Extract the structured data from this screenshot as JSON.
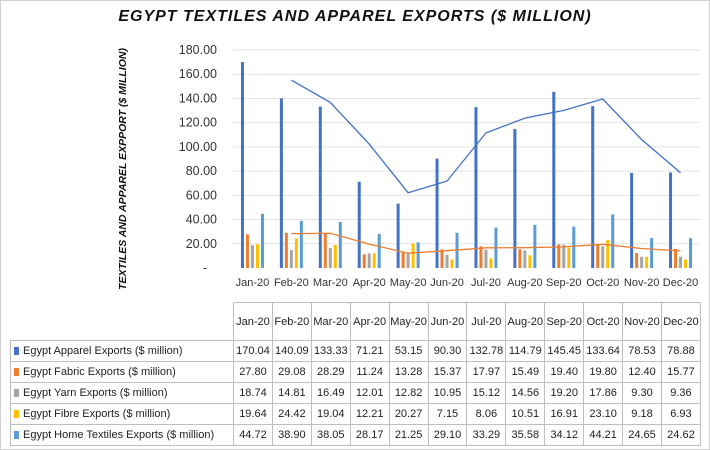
{
  "title": "EGYPT TEXTILES AND APPAREL EXPORTS ($ MILLION)",
  "chart_data": {
    "type": "bar",
    "title": "EGYPT TEXTILES AND APPAREL EXPORTS ($ MILLION)",
    "ylabel": "TEXTILES AND APPAREL EXPPORT ($ MILLION)",
    "xlabel": "",
    "ylim": [
      0,
      180
    ],
    "y_ticks": [
      "-",
      "20.00",
      "40.00",
      "60.00",
      "80.00",
      "100.00",
      "120.00",
      "140.00",
      "160.00",
      "180.00"
    ],
    "categories": [
      "Jan-20",
      "Feb-20",
      "Mar-20",
      "Apr-20",
      "May-20",
      "Jun-20",
      "Jul-20",
      "Aug-20",
      "Sep-20",
      "Oct-20",
      "Nov-20",
      "Dec-20"
    ],
    "series": [
      {
        "name": "Egypt Apparel Exports ($ million)",
        "color": "#4472c4",
        "values": [
          170.04,
          140.09,
          133.33,
          71.21,
          53.15,
          90.3,
          132.78,
          114.79,
          145.45,
          133.64,
          78.53,
          78.88
        ],
        "display": [
          "170.04",
          "140.09",
          "133.33",
          "71.21",
          "53.15",
          "90.30",
          "132.78",
          "114.79",
          "145.45",
          "133.64",
          "78.53",
          "78.88"
        ]
      },
      {
        "name": "Egypt Fabric Exports ($ million)",
        "color": "#ed7d31",
        "values": [
          27.8,
          29.08,
          28.29,
          11.24,
          13.28,
          15.37,
          17.97,
          15.49,
          19.4,
          19.8,
          12.4,
          15.77
        ],
        "display": [
          "27.80",
          "29.08",
          "28.29",
          "11.24",
          "13.28",
          "15.37",
          "17.97",
          "15.49",
          "19.40",
          "19.80",
          "12.40",
          "15.77"
        ]
      },
      {
        "name": "Egypt Yarn Exports ($ million)",
        "color": "#a5a5a5",
        "values": [
          18.74,
          14.81,
          16.49,
          12.01,
          12.82,
          10.95,
          15.12,
          14.56,
          19.2,
          17.86,
          9.3,
          9.36
        ],
        "display": [
          "18.74",
          "14.81",
          "16.49",
          "12.01",
          "12.82",
          "10.95",
          "15.12",
          "14.56",
          "19.20",
          "17.86",
          "9.30",
          "9.36"
        ]
      },
      {
        "name": "Egypt Fibre Exports ($ million)",
        "color": "#ffc000",
        "values": [
          19.64,
          24.42,
          19.04,
          12.21,
          20.27,
          7.15,
          8.06,
          10.51,
          16.91,
          23.1,
          9.18,
          6.93
        ],
        "display": [
          "19.64",
          "24.42",
          "19.04",
          "12.21",
          "20.27",
          "7.15",
          "8.06",
          "10.51",
          "16.91",
          "23.10",
          "9.18",
          "6.93"
        ]
      },
      {
        "name": "Egypt Home Textiles Exports ($ million)",
        "color": "#5b9bd5",
        "values": [
          44.72,
          38.9,
          38.05,
          28.17,
          21.25,
          29.1,
          33.29,
          35.58,
          34.12,
          44.21,
          24.65,
          24.62
        ],
        "display": [
          "44.72",
          "38.90",
          "38.05",
          "28.17",
          "21.25",
          "29.10",
          "33.29",
          "35.58",
          "34.12",
          "44.21",
          "24.65",
          "24.62"
        ]
      }
    ],
    "trendlines": [
      {
        "series": "Egypt Apparel Exports ($ million)",
        "type": "moving-average-2",
        "color": "#4472c4"
      },
      {
        "series": "Egypt Fabric Exports ($ million)",
        "type": "moving-average-2",
        "color": "#ed7d31"
      }
    ],
    "grid": true,
    "legend": "data-table"
  }
}
